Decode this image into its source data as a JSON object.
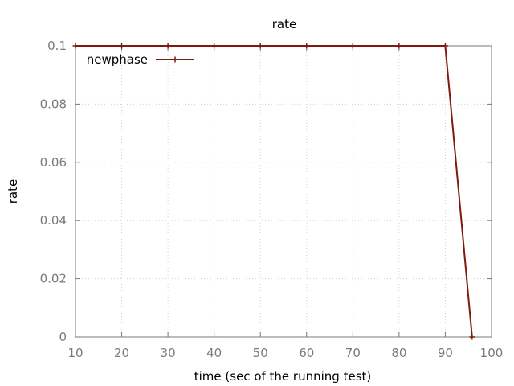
{
  "chart_data": {
    "type": "line",
    "title": "rate",
    "xlabel": "time (sec of the running test)",
    "ylabel": "rate",
    "xlim": [
      10,
      100
    ],
    "ylim": [
      0,
      0.1
    ],
    "xticks": [
      "10",
      "20",
      "30",
      "40",
      "50",
      "60",
      "70",
      "80",
      "90",
      "100"
    ],
    "yticks": [
      "0",
      "0.02",
      "0.04",
      "0.06",
      "0.08",
      "0.1"
    ],
    "grid": true,
    "legend_position": "top-left",
    "series": [
      {
        "name": "newphase",
        "color": "#7f1a0f",
        "marker": "plus",
        "x": [
          10,
          20,
          30,
          40,
          50,
          60,
          70,
          80,
          90,
          95.8
        ],
        "y": [
          0.1,
          0.1,
          0.1,
          0.1,
          0.1,
          0.1,
          0.1,
          0.1,
          0.1,
          0
        ]
      }
    ]
  }
}
